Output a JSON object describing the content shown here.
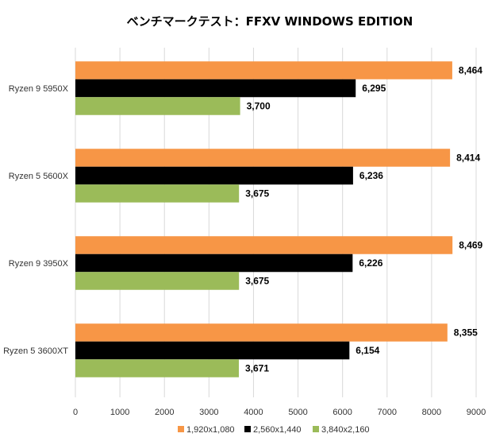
{
  "chart_data": {
    "type": "bar",
    "orientation": "horizontal",
    "title": "ベンチマークテスト：FFXV WINDOWS EDITION",
    "categories": [
      "Ryzen 9 5950X",
      "Ryzen 5 5600X",
      "Ryzen 9 3950X",
      "Ryzen 5 3600XT"
    ],
    "series": [
      {
        "name": "1,920x1,080",
        "color": "#f79646",
        "values": [
          8464,
          8414,
          8469,
          8355
        ],
        "labels": [
          "8,464",
          "8,414",
          "8,469",
          "8,355"
        ]
      },
      {
        "name": "2,560x1,440",
        "color": "#000000",
        "values": [
          6295,
          6236,
          6226,
          6154
        ],
        "labels": [
          "6,295",
          "6,236",
          "6,226",
          "6,154"
        ]
      },
      {
        "name": "3,840x2,160",
        "color": "#9bbb59",
        "values": [
          3700,
          3675,
          3675,
          3671
        ],
        "labels": [
          "3,700",
          "3,675",
          "3,675",
          "3,671"
        ]
      }
    ],
    "xlim": [
      0,
      9000
    ],
    "xticks": [
      0,
      1000,
      2000,
      3000,
      4000,
      5000,
      6000,
      7000,
      8000,
      9000
    ],
    "grid": true,
    "legend_position": "bottom"
  }
}
